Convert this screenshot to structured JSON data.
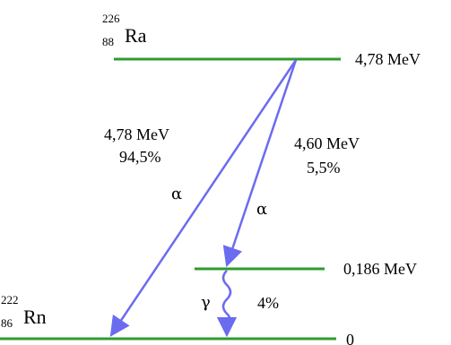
{
  "parent": {
    "mass": "226",
    "atomic": "88",
    "symbol": "Ra"
  },
  "daughter": {
    "mass": "222",
    "atomic": "86",
    "symbol": "Rn"
  },
  "levels": {
    "top": "4,78 MeV",
    "excited": "0,186 MeV",
    "ground": "0"
  },
  "transitions": {
    "alpha1": {
      "energy": "4,78 MeV",
      "percent": "94,5%",
      "symbol": "α"
    },
    "alpha2": {
      "energy": "4,60 MeV",
      "percent": "5,5%",
      "symbol": "α"
    },
    "gamma": {
      "symbol": "γ",
      "percent": "4%"
    }
  },
  "colors": {
    "level": "#2e9b2e",
    "arrow": "#6b6bf0"
  }
}
